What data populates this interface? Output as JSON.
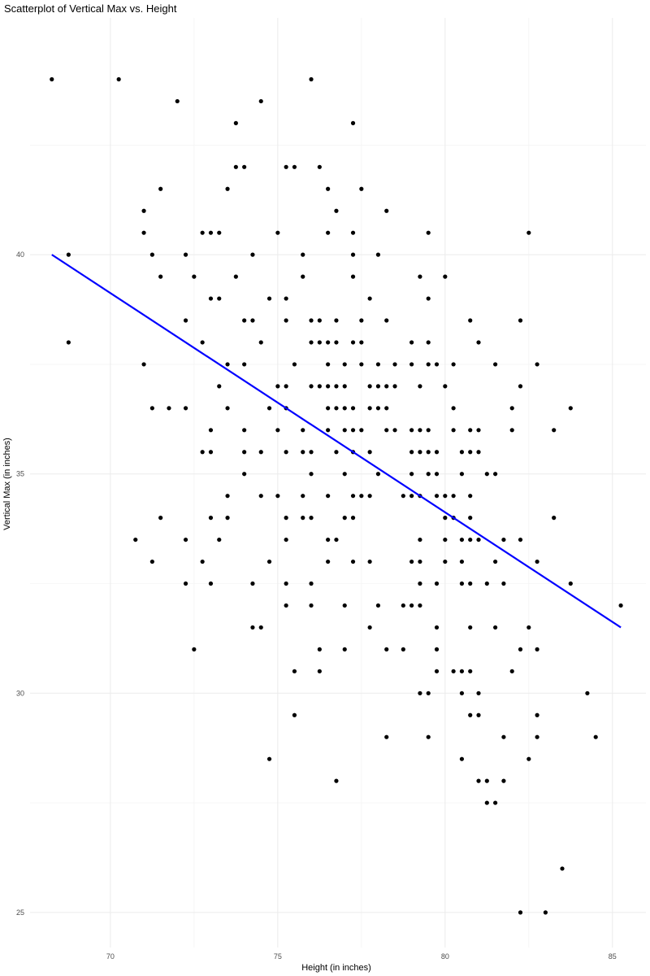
{
  "chart_data": {
    "type": "scatter",
    "title": "Scatterplot of Vertical Max vs. Height",
    "xlabel": "Height (in inches)",
    "ylabel": "Vertical Max (in inches)",
    "xlim": [
      67.6,
      86.0
    ],
    "ylim": [
      24.2,
      45.4
    ],
    "x_ticks": [
      70,
      75,
      80,
      85
    ],
    "y_ticks": [
      25,
      30,
      35,
      40
    ],
    "grid": true,
    "point_color": "#000000",
    "trend_color": "#0000ff",
    "trendline": {
      "x": [
        68.25,
        85.25
      ],
      "y": [
        40.0,
        31.5
      ]
    },
    "points": [
      [
        68.25,
        44
      ],
      [
        70.25,
        44
      ],
      [
        72,
        43.5
      ],
      [
        74.5,
        43.5
      ],
      [
        76,
        44
      ],
      [
        73.75,
        43
      ],
      [
        77.25,
        43
      ],
      [
        73.75,
        42
      ],
      [
        74,
        42
      ],
      [
        75.25,
        42
      ],
      [
        75.5,
        42
      ],
      [
        76.25,
        42
      ],
      [
        71.5,
        41.5
      ],
      [
        73.5,
        41.5
      ],
      [
        76.5,
        41.5
      ],
      [
        77.5,
        41.5
      ],
      [
        71,
        41
      ],
      [
        76.75,
        41
      ],
      [
        78.25,
        41
      ],
      [
        71,
        40.5
      ],
      [
        72.75,
        40.5
      ],
      [
        73,
        40.5
      ],
      [
        73.25,
        40.5
      ],
      [
        75,
        40.5
      ],
      [
        76.5,
        40.5
      ],
      [
        77.25,
        40.5
      ],
      [
        79.5,
        40.5
      ],
      [
        82.5,
        40.5
      ],
      [
        68.75,
        40
      ],
      [
        71.25,
        40
      ],
      [
        72.25,
        40
      ],
      [
        74.25,
        40
      ],
      [
        75.75,
        40
      ],
      [
        77.25,
        40
      ],
      [
        78,
        40
      ],
      [
        71.5,
        39.5
      ],
      [
        72.5,
        39.5
      ],
      [
        73.75,
        39.5
      ],
      [
        75.75,
        39.5
      ],
      [
        77.25,
        39.5
      ],
      [
        79.25,
        39.5
      ],
      [
        80,
        39.5
      ],
      [
        73,
        39
      ],
      [
        73.25,
        39
      ],
      [
        74.75,
        39
      ],
      [
        75.25,
        39
      ],
      [
        77.75,
        39
      ],
      [
        79.5,
        39
      ],
      [
        72.25,
        38.5
      ],
      [
        74,
        38.5
      ],
      [
        74.25,
        38.5
      ],
      [
        75.25,
        38.5
      ],
      [
        76,
        38.5
      ],
      [
        76.25,
        38.5
      ],
      [
        76.75,
        38.5
      ],
      [
        77.5,
        38.5
      ],
      [
        78.25,
        38.5
      ],
      [
        80.75,
        38.5
      ],
      [
        82.25,
        38.5
      ],
      [
        68.75,
        38
      ],
      [
        72.75,
        38
      ],
      [
        74.5,
        38
      ],
      [
        76,
        38
      ],
      [
        76.25,
        38
      ],
      [
        76.5,
        38
      ],
      [
        76.75,
        38
      ],
      [
        77.25,
        38
      ],
      [
        77.5,
        38
      ],
      [
        79,
        38
      ],
      [
        79.5,
        38
      ],
      [
        81,
        38
      ],
      [
        71,
        37.5
      ],
      [
        73.5,
        37.5
      ],
      [
        74,
        37.5
      ],
      [
        75.5,
        37.5
      ],
      [
        76.5,
        37.5
      ],
      [
        77,
        37.5
      ],
      [
        77.5,
        37.5
      ],
      [
        78,
        37.5
      ],
      [
        78.5,
        37.5
      ],
      [
        79,
        37.5
      ],
      [
        79.5,
        37.5
      ],
      [
        79.75,
        37.5
      ],
      [
        80.25,
        37.5
      ],
      [
        81.5,
        37.5
      ],
      [
        82.75,
        37.5
      ],
      [
        73.25,
        37
      ],
      [
        75,
        37
      ],
      [
        75.25,
        37
      ],
      [
        76,
        37
      ],
      [
        76.25,
        37
      ],
      [
        76.5,
        37
      ],
      [
        76.75,
        37
      ],
      [
        77,
        37
      ],
      [
        77.75,
        37
      ],
      [
        78,
        37
      ],
      [
        78.25,
        37
      ],
      [
        78.5,
        37
      ],
      [
        79.25,
        37
      ],
      [
        80,
        37
      ],
      [
        82.25,
        37
      ],
      [
        71.25,
        36.5
      ],
      [
        71.75,
        36.5
      ],
      [
        72.25,
        36.5
      ],
      [
        73.5,
        36.5
      ],
      [
        74.75,
        36.5
      ],
      [
        75.25,
        36.5
      ],
      [
        76.5,
        36.5
      ],
      [
        76.75,
        36.5
      ],
      [
        77,
        36.5
      ],
      [
        77.25,
        36.5
      ],
      [
        77.75,
        36.5
      ],
      [
        78,
        36.5
      ],
      [
        78.25,
        36.5
      ],
      [
        80.25,
        36.5
      ],
      [
        82,
        36.5
      ],
      [
        83.75,
        36.5
      ],
      [
        73,
        36
      ],
      [
        74,
        36
      ],
      [
        75,
        36
      ],
      [
        75.75,
        36
      ],
      [
        76.5,
        36
      ],
      [
        77,
        36
      ],
      [
        77.25,
        36
      ],
      [
        77.5,
        36
      ],
      [
        78.25,
        36
      ],
      [
        78.5,
        36
      ],
      [
        79,
        36
      ],
      [
        79.25,
        36
      ],
      [
        79.5,
        36
      ],
      [
        80.25,
        36
      ],
      [
        80.75,
        36
      ],
      [
        81,
        36
      ],
      [
        82,
        36
      ],
      [
        83.25,
        36
      ],
      [
        72.75,
        35.5
      ],
      [
        73,
        35.5
      ],
      [
        74,
        35.5
      ],
      [
        74.5,
        35.5
      ],
      [
        75.25,
        35.5
      ],
      [
        75.75,
        35.5
      ],
      [
        76,
        35.5
      ],
      [
        76.75,
        35.5
      ],
      [
        77.25,
        35.5
      ],
      [
        77.75,
        35.5
      ],
      [
        79,
        35.5
      ],
      [
        79.25,
        35.5
      ],
      [
        79.5,
        35.5
      ],
      [
        79.75,
        35.5
      ],
      [
        80.5,
        35.5
      ],
      [
        80.75,
        35.5
      ],
      [
        81,
        35.5
      ],
      [
        74,
        35
      ],
      [
        76,
        35
      ],
      [
        77,
        35
      ],
      [
        78,
        35
      ],
      [
        79,
        35
      ],
      [
        79.5,
        35
      ],
      [
        79.75,
        35
      ],
      [
        80.5,
        35
      ],
      [
        81.25,
        35
      ],
      [
        81.5,
        35
      ],
      [
        73.5,
        34.5
      ],
      [
        74.5,
        34.5
      ],
      [
        75,
        34.5
      ],
      [
        75.75,
        34.5
      ],
      [
        76.5,
        34.5
      ],
      [
        77.25,
        34.5
      ],
      [
        77.5,
        34.5
      ],
      [
        77.75,
        34.5
      ],
      [
        78.75,
        34.5
      ],
      [
        79,
        34.5
      ],
      [
        79.25,
        34.5
      ],
      [
        79.75,
        34.5
      ],
      [
        80,
        34.5
      ],
      [
        80.25,
        34.5
      ],
      [
        80.75,
        34.5
      ],
      [
        71.5,
        34
      ],
      [
        73,
        34
      ],
      [
        73.5,
        34
      ],
      [
        75.25,
        34
      ],
      [
        75.75,
        34
      ],
      [
        76,
        34
      ],
      [
        77,
        34
      ],
      [
        77.25,
        34
      ],
      [
        80,
        34
      ],
      [
        80.25,
        34
      ],
      [
        80.75,
        34
      ],
      [
        83.25,
        34
      ],
      [
        70.75,
        33.5
      ],
      [
        72.25,
        33.5
      ],
      [
        73.25,
        33.5
      ],
      [
        75.25,
        33.5
      ],
      [
        76.5,
        33.5
      ],
      [
        76.75,
        33.5
      ],
      [
        79.25,
        33.5
      ],
      [
        80,
        33.5
      ],
      [
        80.5,
        33.5
      ],
      [
        80.75,
        33.5
      ],
      [
        81,
        33.5
      ],
      [
        81.75,
        33.5
      ],
      [
        82.25,
        33.5
      ],
      [
        71.25,
        33
      ],
      [
        72.75,
        33
      ],
      [
        74.75,
        33
      ],
      [
        76.5,
        33
      ],
      [
        77.25,
        33
      ],
      [
        77.75,
        33
      ],
      [
        79,
        33
      ],
      [
        79.25,
        33
      ],
      [
        80,
        33
      ],
      [
        80.5,
        33
      ],
      [
        81.5,
        33
      ],
      [
        82.75,
        33
      ],
      [
        72.25,
        32.5
      ],
      [
        73,
        32.5
      ],
      [
        74.25,
        32.5
      ],
      [
        75.25,
        32.5
      ],
      [
        76,
        32.5
      ],
      [
        79.25,
        32.5
      ],
      [
        79.75,
        32.5
      ],
      [
        80.5,
        32.5
      ],
      [
        80.75,
        32.5
      ],
      [
        81.25,
        32.5
      ],
      [
        81.75,
        32.5
      ],
      [
        83.75,
        32.5
      ],
      [
        75.25,
        32
      ],
      [
        76,
        32
      ],
      [
        77,
        32
      ],
      [
        78,
        32
      ],
      [
        78.75,
        32
      ],
      [
        79,
        32
      ],
      [
        79.25,
        32
      ],
      [
        85.25,
        32
      ],
      [
        74.25,
        31.5
      ],
      [
        74.5,
        31.5
      ],
      [
        77.75,
        31.5
      ],
      [
        79.75,
        31.5
      ],
      [
        80.75,
        31.5
      ],
      [
        81.5,
        31.5
      ],
      [
        82.5,
        31.5
      ],
      [
        72.5,
        31
      ],
      [
        76.25,
        31
      ],
      [
        77,
        31
      ],
      [
        78.25,
        31
      ],
      [
        78.75,
        31
      ],
      [
        79.75,
        31
      ],
      [
        82.25,
        31
      ],
      [
        82.75,
        31
      ],
      [
        75.5,
        30.5
      ],
      [
        76.25,
        30.5
      ],
      [
        79.75,
        30.5
      ],
      [
        80.25,
        30.5
      ],
      [
        80.5,
        30.5
      ],
      [
        80.75,
        30.5
      ],
      [
        82,
        30.5
      ],
      [
        79.25,
        30
      ],
      [
        79.5,
        30
      ],
      [
        80.5,
        30
      ],
      [
        81,
        30
      ],
      [
        84.25,
        30
      ],
      [
        75.5,
        29.5
      ],
      [
        80.75,
        29.5
      ],
      [
        81,
        29.5
      ],
      [
        82.75,
        29.5
      ],
      [
        78.25,
        29
      ],
      [
        79.5,
        29
      ],
      [
        81.75,
        29
      ],
      [
        82.75,
        29
      ],
      [
        84.5,
        29
      ],
      [
        74.75,
        28.5
      ],
      [
        80.5,
        28.5
      ],
      [
        82.5,
        28.5
      ],
      [
        76.75,
        28
      ],
      [
        81,
        28
      ],
      [
        81.25,
        28
      ],
      [
        81.75,
        28
      ],
      [
        81.25,
        27.5
      ],
      [
        81.5,
        27.5
      ],
      [
        83.5,
        26
      ],
      [
        82.25,
        25
      ],
      [
        83,
        25
      ]
    ]
  }
}
